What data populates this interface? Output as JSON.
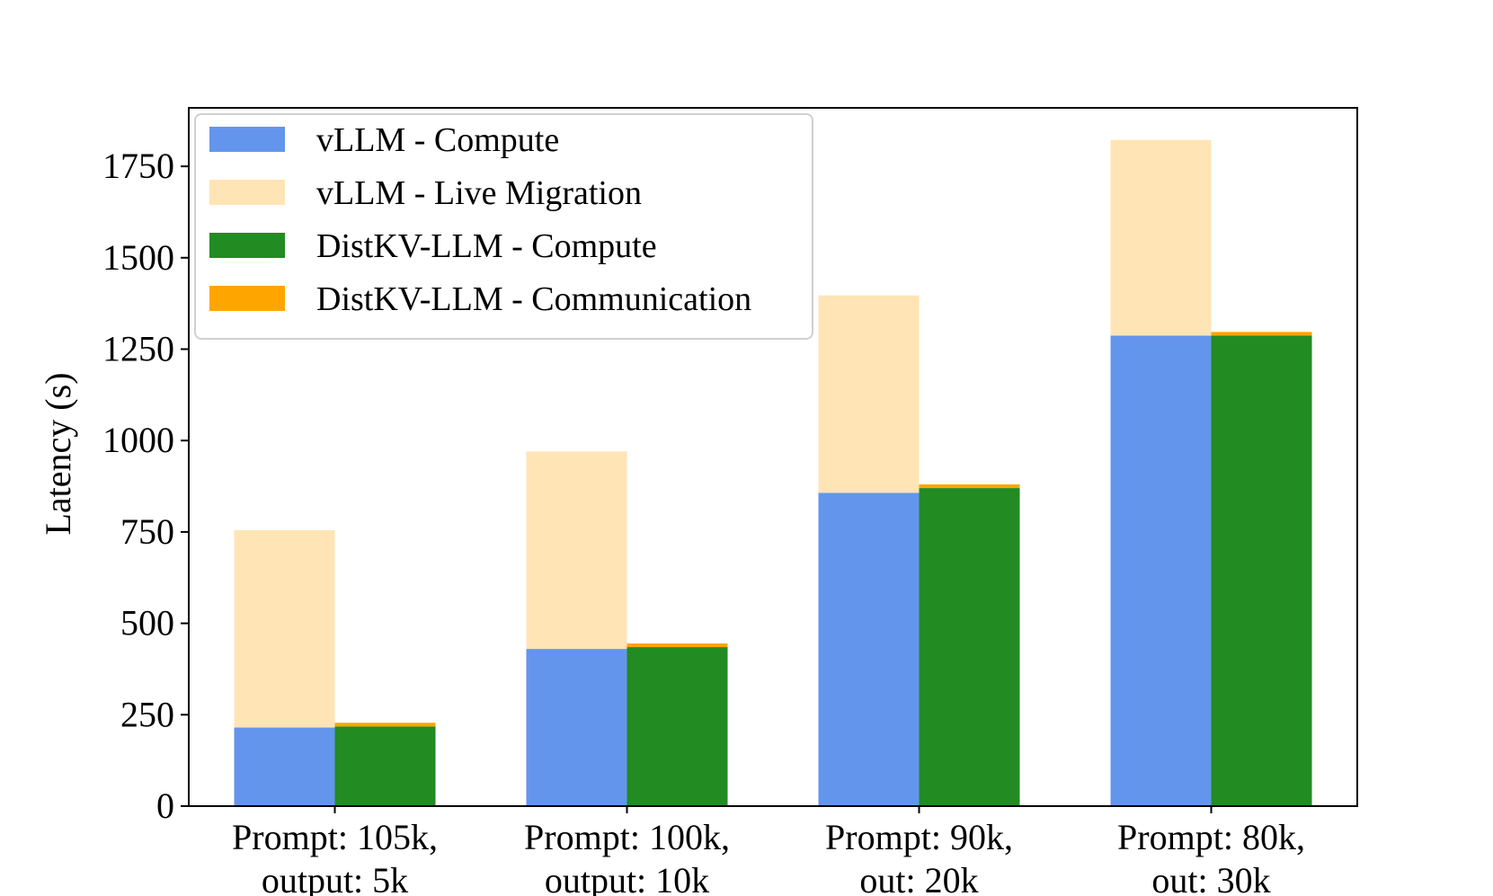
{
  "chart_data": {
    "type": "bar",
    "stacked": true,
    "title": "",
    "xlabel": "",
    "ylabel": "Latency (s)",
    "ylim": [
      0,
      1910
    ],
    "yticks": [
      0,
      250,
      500,
      750,
      1000,
      1250,
      1500,
      1750
    ],
    "legend_position": "top-left",
    "grid": false,
    "categories": [
      [
        "Prompt: 105k,",
        "output: 5k"
      ],
      [
        "Prompt: 100k,",
        "output: 10k"
      ],
      [
        "Prompt: 90k,",
        "out: 20k"
      ],
      [
        "Prompt: 80k,",
        "out: 30k"
      ]
    ],
    "groups": [
      {
        "name": "vLLM",
        "series": [
          {
            "name": "vLLM - Compute",
            "color": "#6495ED",
            "values": [
              215,
              430,
              857,
              1287
            ]
          },
          {
            "name": "vLLM - Live Migration",
            "color": "#FFE4B5",
            "values": [
              540,
              540,
              540,
              535
            ]
          }
        ]
      },
      {
        "name": "DistKV-LLM",
        "series": [
          {
            "name": "DistKV-LLM - Compute",
            "color": "#228B22",
            "values": [
              218,
              435,
              870,
              1287
            ]
          },
          {
            "name": "DistKV-LLM - Communication",
            "color": "#FFA500",
            "values": [
              10,
              10,
              10,
              10
            ]
          }
        ]
      }
    ]
  }
}
